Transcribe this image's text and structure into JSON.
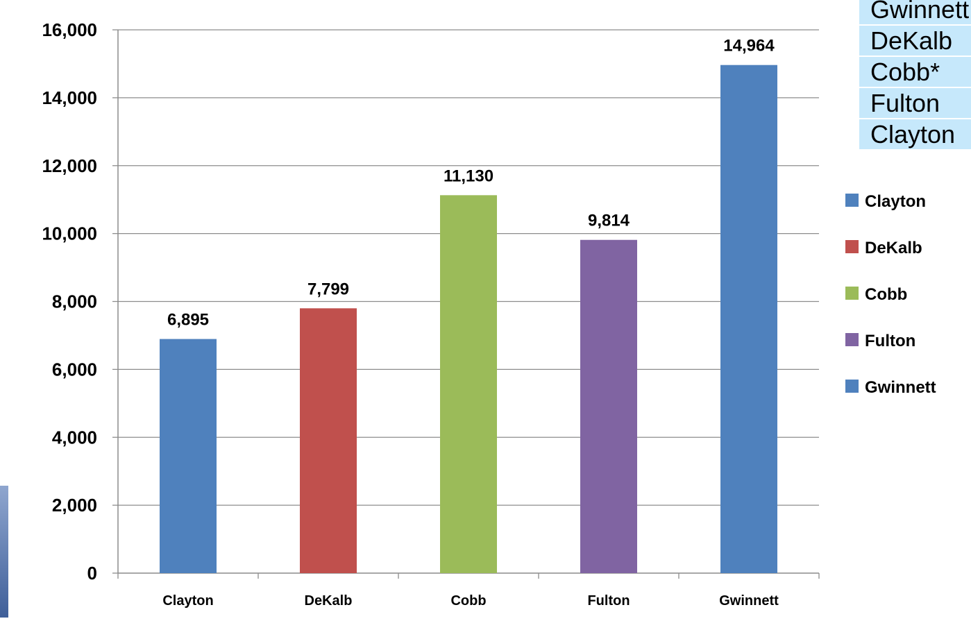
{
  "chart_data": {
    "type": "bar",
    "categories": [
      "Clayton",
      "DeKalb",
      "Cobb",
      "Fulton",
      "Gwinnett"
    ],
    "values": [
      6895,
      7799,
      11130,
      9814,
      14964
    ],
    "data_labels": [
      "6,895",
      "7,799",
      "11,130",
      "9,814",
      "14,964"
    ],
    "colors": [
      "#4f81bd",
      "#c0504d",
      "#9bbb59",
      "#8064a2",
      "#4f81bd"
    ],
    "ylim": [
      0,
      16000
    ],
    "yticks": [
      0,
      2000,
      4000,
      6000,
      8000,
      10000,
      12000,
      14000,
      16000
    ],
    "ytick_labels": [
      "0",
      "2,000",
      "4,000",
      "6,000",
      "8,000",
      "10,000",
      "12,000",
      "14,000",
      "16,000"
    ],
    "grid": true,
    "legend": {
      "placement": "right",
      "entries": [
        {
          "label": "Clayton",
          "color": "#4f81bd"
        },
        {
          "label": "DeKalb",
          "color": "#c0504d"
        },
        {
          "label": "Cobb",
          "color": "#9bbb59"
        },
        {
          "label": "Fulton",
          "color": "#8064a2"
        },
        {
          "label": "Gwinnett",
          "color": "#4f81bd"
        }
      ]
    },
    "title": "",
    "xlabel": "",
    "ylabel": ""
  },
  "side_list": {
    "items": [
      "Gwinnett",
      "DeKalb",
      "Cobb*",
      "Fulton",
      "Clayton"
    ],
    "background": "#c6e8fb"
  }
}
